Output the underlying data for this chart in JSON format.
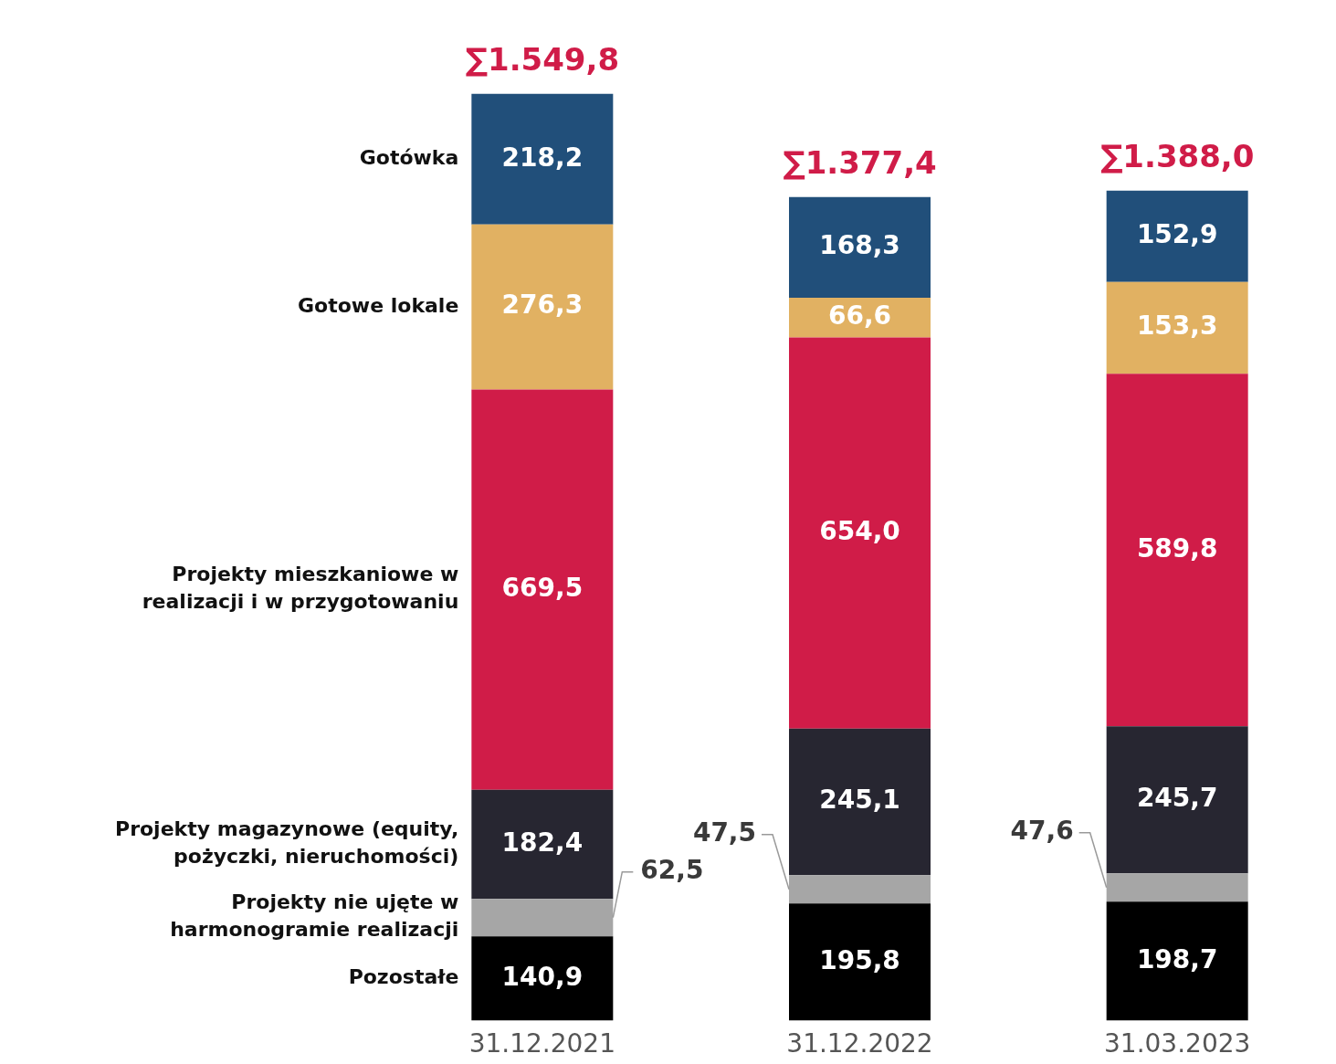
{
  "chart_data": {
    "type": "bar",
    "stacked": true,
    "categories": [
      "31.12.2021",
      "31.12.2022",
      "31.03.2023"
    ],
    "series": [
      {
        "name": "Pozostałe",
        "color": "#000000",
        "values": [
          140.9,
          195.8,
          198.7
        ],
        "value_labels": [
          "140,9",
          "195,8",
          "198,7"
        ]
      },
      {
        "name": "Projekty nie ujęte w harmonogramie realizacji",
        "color": "#a6a6a6",
        "values": [
          62.5,
          47.5,
          47.6
        ],
        "value_labels": [
          "62,5",
          "47,5",
          "47,6"
        ]
      },
      {
        "name": "Projekty magazynowe (equity, pożyczki, nieruchomości)",
        "color": "#272631",
        "values": [
          182.4,
          245.1,
          245.7
        ],
        "value_labels": [
          "182,4",
          "245,1",
          "245,7"
        ]
      },
      {
        "name": "Projekty mieszkaniowe w realizacji i w przygotowaniu",
        "color": "#d01c48",
        "values": [
          669.5,
          654.0,
          589.8
        ],
        "value_labels": [
          "669,5",
          "654,0",
          "589,8"
        ]
      },
      {
        "name": "Gotowe lokale",
        "color": "#e1b162",
        "values": [
          276.3,
          66.6,
          153.3
        ],
        "value_labels": [
          "276,3",
          "66,6",
          "153,3"
        ]
      },
      {
        "name": "Gotówka",
        "color": "#214f7a",
        "values": [
          218.2,
          168.3,
          152.9
        ],
        "value_labels": [
          "218,2",
          "168,3",
          "152,9"
        ]
      }
    ],
    "totals": [
      "∑1.549,8",
      "∑1.377,4",
      "∑1.388,0"
    ]
  }
}
